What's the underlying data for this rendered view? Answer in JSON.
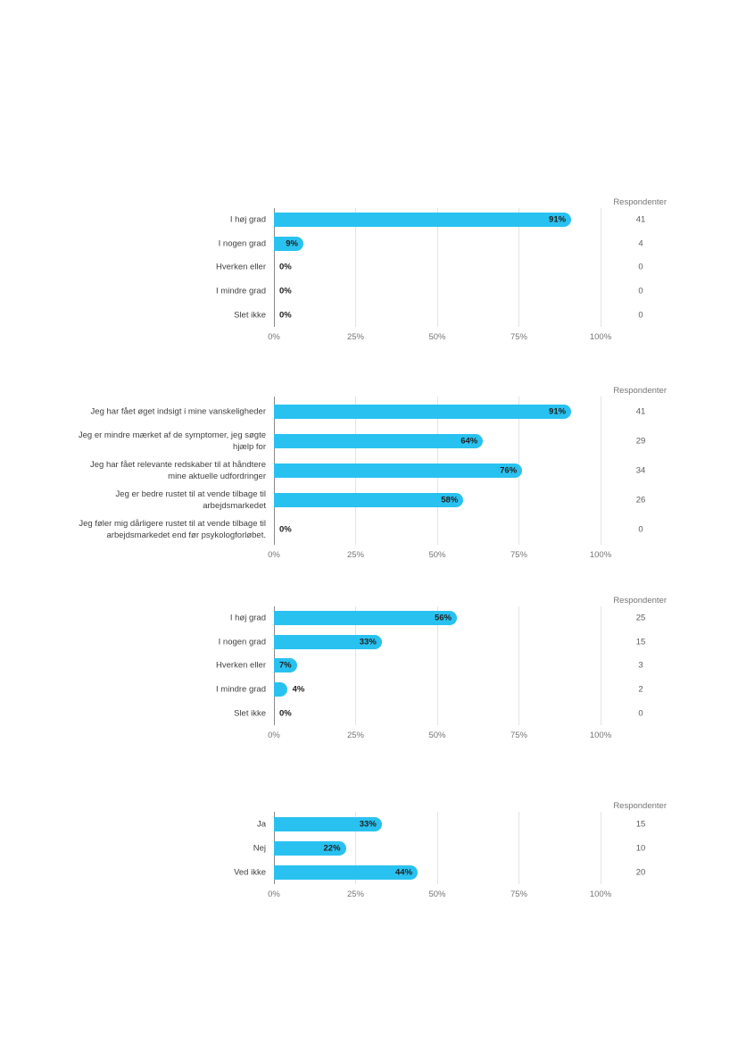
{
  "page": {
    "background": "#ffffff"
  },
  "colors": {
    "bar": "#29C2F0",
    "axis_line": "#8a8a8a",
    "gridline": "#e3e3e3",
    "category_label_text": "#3f3f3f",
    "tick_text": "#757575",
    "value_label_text": "#222222",
    "respondents_text": "#5c5c5c"
  },
  "chart_data": [
    {
      "type": "bar",
      "orientation": "horizontal",
      "respondents_header": "Respondenter",
      "categories": [
        "I høj grad",
        "I nogen grad",
        "Hverken eller",
        "I mindre grad",
        "Slet ikke"
      ],
      "values": [
        91,
        9,
        0,
        0,
        0
      ],
      "value_labels": [
        "91%",
        "9%",
        "0%",
        "0%",
        "0%"
      ],
      "respondents": [
        41,
        4,
        0,
        0,
        0
      ],
      "x_ticks": [
        "0%",
        "25%",
        "50%",
        "75%",
        "100%"
      ],
      "xlim": [
        0,
        100
      ],
      "grid": true,
      "bar_color": "#29C2F0"
    },
    {
      "type": "bar",
      "orientation": "horizontal",
      "respondents_header": "Respondenter",
      "categories": [
        "Jeg har fået øget indsigt i mine vanskeligheder",
        "Jeg er mindre mærket af de symptomer, jeg søgte\nhjælp for",
        "Jeg har fået relevante redskaber til at håndtere\nmine aktuelle udfordringer",
        "Jeg er bedre rustet til at vende tilbage til\narbejdsmarkedet",
        "Jeg føler mig dårligere rustet til at vende tilbage til\narbejdsmarkedet end før psykologforløbet."
      ],
      "values": [
        91,
        64,
        76,
        58,
        0
      ],
      "value_labels": [
        "91%",
        "64%",
        "76%",
        "58%",
        "0%"
      ],
      "respondents": [
        41,
        29,
        34,
        26,
        0
      ],
      "x_ticks": [
        "0%",
        "25%",
        "50%",
        "75%",
        "100%"
      ],
      "xlim": [
        0,
        100
      ],
      "grid": true,
      "bar_color": "#29C2F0"
    },
    {
      "type": "bar",
      "orientation": "horizontal",
      "respondents_header": "Respondenter",
      "categories": [
        "I høj grad",
        "I nogen grad",
        "Hverken eller",
        "I mindre grad",
        "Slet ikke"
      ],
      "values": [
        56,
        33,
        7,
        4,
        0
      ],
      "value_labels": [
        "56%",
        "33%",
        "7%",
        "4%",
        "0%"
      ],
      "respondents": [
        25,
        15,
        3,
        2,
        0
      ],
      "x_ticks": [
        "0%",
        "25%",
        "50%",
        "75%",
        "100%"
      ],
      "xlim": [
        0,
        100
      ],
      "grid": true,
      "bar_color": "#29C2F0"
    },
    {
      "type": "bar",
      "orientation": "horizontal",
      "respondents_header": "Respondenter",
      "categories": [
        "Ja",
        "Nej",
        "Ved ikke"
      ],
      "values": [
        33,
        22,
        44
      ],
      "value_labels": [
        "33%",
        "22%",
        "44%"
      ],
      "respondents": [
        15,
        10,
        20
      ],
      "x_ticks": [
        "0%",
        "25%",
        "50%",
        "75%",
        "100%"
      ],
      "xlim": [
        0,
        100
      ],
      "grid": true,
      "bar_color": "#29C2F0"
    }
  ]
}
